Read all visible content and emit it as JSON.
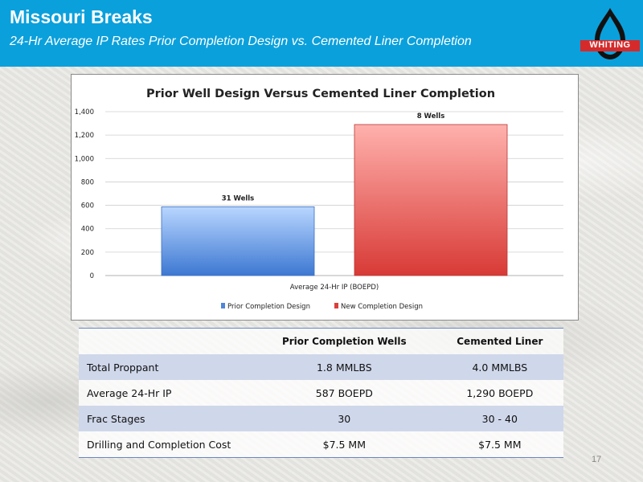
{
  "header": {
    "title": "Missouri Breaks",
    "subtitle": "24-Hr Average IP Rates Prior Completion Design vs. Cemented Liner Completion",
    "logo_text": "WHITING"
  },
  "chart_data": {
    "type": "bar",
    "title": "Prior Well Design Versus Cemented Liner Completion",
    "categories": [
      "Average 24-Hr IP (BOEPD)"
    ],
    "series": [
      {
        "name": "Prior Completion Design",
        "values": [
          587
        ],
        "label": "31 Wells",
        "color": "#4f86d8"
      },
      {
        "name": "New Completion Design",
        "values": [
          1290
        ],
        "label": "8 Wells",
        "color": "#d9403c"
      }
    ],
    "ylim": [
      0,
      1400
    ],
    "yticks": [
      "0",
      "200",
      "400",
      "600",
      "800",
      "1,000",
      "1,200",
      "1,400"
    ],
    "ytick_values": [
      0,
      200,
      400,
      600,
      800,
      1000,
      1200,
      1400
    ],
    "grid": true,
    "legend": "bottom"
  },
  "table": {
    "headers": [
      "",
      "Prior Completion Wells",
      "Cemented Liner"
    ],
    "rows": [
      [
        "Total Proppant",
        "1.8 MMLBS",
        "4.0 MMLBS"
      ],
      [
        "Average 24-Hr IP",
        "587 BOEPD",
        "1,290 BOEPD"
      ],
      [
        "Frac Stages",
        "30",
        "30 - 40"
      ],
      [
        "Drilling and Completion Cost",
        "$7.5 MM",
        "$7.5 MM"
      ]
    ]
  },
  "page_number": "17"
}
